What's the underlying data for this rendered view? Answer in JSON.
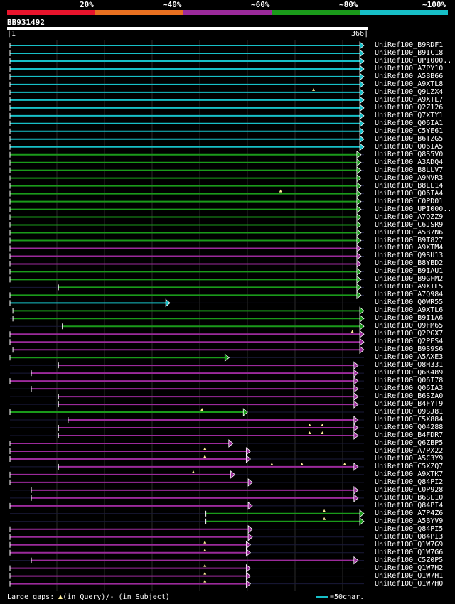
{
  "query": {
    "id": "BB931492",
    "start": "1",
    "end": "366"
  },
  "legend": {
    "colors": [
      "#e8142c",
      "#e87020",
      "#9b2a9b",
      "#1a9a1a",
      "#17bfc7"
    ],
    "labels": [
      "20%",
      "~40%",
      "~60%",
      "~80%",
      "~100%"
    ]
  },
  "footer": {
    "prefix": "Large gaps: ",
    "query_note": "(in Query)/",
    "dash": "-",
    "subject_note": " (in Subject)",
    "scale_label": "=50char."
  },
  "hits": [
    {
      "name": "UniRef100_B9RDF1",
      "color": "#17bfc7",
      "start": 1,
      "end": 366,
      "gaps": []
    },
    {
      "name": "UniRef100_B9IC18",
      "color": "#17bfc7",
      "start": 1,
      "end": 366,
      "gaps": []
    },
    {
      "name": "UniRef100_UPI000..",
      "color": "#17bfc7",
      "start": 1,
      "end": 366,
      "gaps": []
    },
    {
      "name": "UniRef100_A7PY10",
      "color": "#17bfc7",
      "start": 1,
      "end": 366,
      "gaps": []
    },
    {
      "name": "UniRef100_A5BB66",
      "color": "#17bfc7",
      "start": 1,
      "end": 366,
      "gaps": []
    },
    {
      "name": "UniRef100_A9XTL8",
      "color": "#17bfc7",
      "start": 1,
      "end": 366,
      "gaps": []
    },
    {
      "name": "UniRef100_Q9LZX4",
      "color": "#17bfc7",
      "start": 1,
      "end": 366,
      "gaps": [
        314
      ]
    },
    {
      "name": "UniRef100_A9XTL7",
      "color": "#17bfc7",
      "start": 1,
      "end": 366,
      "gaps": []
    },
    {
      "name": "UniRef100_Q2Z126",
      "color": "#17bfc7",
      "start": 1,
      "end": 366,
      "gaps": []
    },
    {
      "name": "UniRef100_Q7XTY1",
      "color": "#17bfc7",
      "start": 1,
      "end": 366,
      "gaps": []
    },
    {
      "name": "UniRef100_Q06IA1",
      "color": "#17bfc7",
      "start": 1,
      "end": 366,
      "gaps": []
    },
    {
      "name": "UniRef100_C5YE61",
      "color": "#17bfc7",
      "start": 1,
      "end": 366,
      "gaps": []
    },
    {
      "name": "UniRef100_B6TZG5",
      "color": "#17bfc7",
      "start": 1,
      "end": 366,
      "gaps": []
    },
    {
      "name": "UniRef100_Q06IA5",
      "color": "#17bfc7",
      "start": 1,
      "end": 366,
      "gaps": []
    },
    {
      "name": "UniRef100_Q8S5V0",
      "color": "#1a9a1a",
      "start": 1,
      "end": 363,
      "gaps": []
    },
    {
      "name": "UniRef100_A3ADQ4",
      "color": "#1a9a1a",
      "start": 1,
      "end": 363,
      "gaps": []
    },
    {
      "name": "UniRef100_B8LLV7",
      "color": "#1a9a1a",
      "start": 1,
      "end": 363,
      "gaps": []
    },
    {
      "name": "UniRef100_A9NVR3",
      "color": "#1a9a1a",
      "start": 1,
      "end": 363,
      "gaps": []
    },
    {
      "name": "UniRef100_B8LL14",
      "color": "#1a9a1a",
      "start": 1,
      "end": 363,
      "gaps": []
    },
    {
      "name": "UniRef100_Q06IA4",
      "color": "#1a9a1a",
      "start": 1,
      "end": 363,
      "gaps": [
        280
      ]
    },
    {
      "name": "UniRef100_C0PD01",
      "color": "#1a9a1a",
      "start": 1,
      "end": 363,
      "gaps": []
    },
    {
      "name": "UniRef100_UPI000..",
      "color": "#1a9a1a",
      "start": 1,
      "end": 363,
      "gaps": []
    },
    {
      "name": "UniRef100_A7QZZ9",
      "color": "#1a9a1a",
      "start": 1,
      "end": 363,
      "gaps": []
    },
    {
      "name": "UniRef100_C6JSR9",
      "color": "#1a9a1a",
      "start": 1,
      "end": 363,
      "gaps": []
    },
    {
      "name": "UniRef100_A5B7N6",
      "color": "#1a9a1a",
      "start": 1,
      "end": 363,
      "gaps": []
    },
    {
      "name": "UniRef100_B9T827",
      "color": "#1a9a1a",
      "start": 1,
      "end": 363,
      "gaps": []
    },
    {
      "name": "UniRef100_A9XTM4",
      "color": "#9b2a9b",
      "start": 1,
      "end": 363,
      "gaps": []
    },
    {
      "name": "UniRef100_Q9SU13",
      "color": "#9b2a9b",
      "start": 1,
      "end": 363,
      "gaps": []
    },
    {
      "name": "UniRef100_B8YBD2",
      "color": "#9b2a9b",
      "start": 1,
      "end": 363,
      "gaps": []
    },
    {
      "name": "UniRef100_B9IAU1",
      "color": "#1a9a1a",
      "start": 1,
      "end": 363,
      "gaps": []
    },
    {
      "name": "UniRef100_B9GFM2",
      "color": "#1a9a1a",
      "start": 1,
      "end": 363,
      "gaps": []
    },
    {
      "name": "UniRef100_A9XTL5",
      "color": "#1a9a1a",
      "start": 51,
      "end": 363,
      "gaps": []
    },
    {
      "name": "UniRef100_A7Q984",
      "color": "#1a9a1a",
      "start": 1,
      "end": 363,
      "gaps": []
    },
    {
      "name": "UniRef100_Q0WR55",
      "color": "#17bfc7",
      "start": 1,
      "end": 166,
      "gaps": []
    },
    {
      "name": "UniRef100_A9XTL6",
      "color": "#1a9a1a",
      "start": 4,
      "end": 366,
      "gaps": []
    },
    {
      "name": "UniRef100_B9I1A6",
      "color": "#1a9a1a",
      "start": 4,
      "end": 366,
      "gaps": []
    },
    {
      "name": "UniRef100_Q9FM65",
      "color": "#1a9a1a",
      "start": 55,
      "end": 366,
      "gaps": []
    },
    {
      "name": "UniRef100_Q2PGX7",
      "color": "#9b2a9b",
      "start": 1,
      "end": 366,
      "gaps": [
        354
      ]
    },
    {
      "name": "UniRef100_Q2PES4",
      "color": "#9b2a9b",
      "start": 1,
      "end": 366,
      "gaps": []
    },
    {
      "name": "UniRef100_B9S9S6",
      "color": "#9b2a9b",
      "start": 4,
      "end": 366,
      "gaps": []
    },
    {
      "name": "UniRef100_A5AXE3",
      "color": "#1a9a1a",
      "start": 1,
      "end": 227,
      "gaps": []
    },
    {
      "name": "UniRef100_Q8H331",
      "color": "#9b2a9b",
      "start": 51,
      "end": 360,
      "gaps": []
    },
    {
      "name": "UniRef100_Q6K489",
      "color": "#9b2a9b",
      "start": 23,
      "end": 360,
      "gaps": []
    },
    {
      "name": "UniRef100_Q06I78",
      "color": "#9b2a9b",
      "start": 1,
      "end": 360,
      "gaps": []
    },
    {
      "name": "UniRef100_Q06IA3",
      "color": "#9b2a9b",
      "start": 23,
      "end": 360,
      "gaps": []
    },
    {
      "name": "UniRef100_B6SZA0",
      "color": "#9b2a9b",
      "start": 51,
      "end": 360,
      "gaps": []
    },
    {
      "name": "UniRef100_B4FYT9",
      "color": "#9b2a9b",
      "start": 51,
      "end": 360,
      "gaps": []
    },
    {
      "name": "UniRef100_Q9SJ81",
      "color": "#1a9a1a",
      "start": 1,
      "end": 246,
      "gaps": [
        199
      ]
    },
    {
      "name": "UniRef100_C5X884",
      "color": "#9b2a9b",
      "start": 61,
      "end": 360,
      "gaps": []
    },
    {
      "name": "UniRef100_Q04288",
      "color": "#9b2a9b",
      "start": 51,
      "end": 360,
      "gaps": [
        310,
        323
      ]
    },
    {
      "name": "UniRef100_B4FDR7",
      "color": "#9b2a9b",
      "start": 51,
      "end": 360,
      "gaps": [
        310,
        323
      ]
    },
    {
      "name": "UniRef100_Q6ZBP5",
      "color": "#9b2a9b",
      "start": 1,
      "end": 231,
      "gaps": []
    },
    {
      "name": "UniRef100_A7PX22",
      "color": "#9b2a9b",
      "start": 1,
      "end": 249,
      "gaps": [
        202
      ]
    },
    {
      "name": "UniRef100_A5C3Y9",
      "color": "#9b2a9b",
      "start": 1,
      "end": 249,
      "gaps": [
        202
      ]
    },
    {
      "name": "UniRef100_C5XZQ7",
      "color": "#9b2a9b",
      "start": 51,
      "end": 360,
      "gaps": [
        271,
        302,
        346
      ]
    },
    {
      "name": "UniRef100_A9XTK7",
      "color": "#9b2a9b",
      "start": 1,
      "end": 233,
      "gaps": [
        190
      ]
    },
    {
      "name": "UniRef100_Q84PI2",
      "color": "#9b2a9b",
      "start": 1,
      "end": 251,
      "gaps": []
    },
    {
      "name": "UniRef100_C0P928",
      "color": "#9b2a9b",
      "start": 23,
      "end": 360,
      "gaps": []
    },
    {
      "name": "UniRef100_B6SL10",
      "color": "#9b2a9b",
      "start": 23,
      "end": 360,
      "gaps": []
    },
    {
      "name": "UniRef100_Q84PI4",
      "color": "#9b2a9b",
      "start": 1,
      "end": 251,
      "gaps": []
    },
    {
      "name": "UniRef100_A7P4Z6",
      "color": "#1a9a1a",
      "start": 203,
      "end": 366,
      "gaps": [
        325
      ]
    },
    {
      "name": "UniRef100_A5BYV9",
      "color": "#1a9a1a",
      "start": 203,
      "end": 366,
      "gaps": [
        325
      ]
    },
    {
      "name": "UniRef100_Q84PI5",
      "color": "#9b2a9b",
      "start": 1,
      "end": 251,
      "gaps": []
    },
    {
      "name": "UniRef100_Q84PI3",
      "color": "#9b2a9b",
      "start": 1,
      "end": 251,
      "gaps": []
    },
    {
      "name": "UniRef100_Q1W7G9",
      "color": "#9b2a9b",
      "start": 1,
      "end": 249,
      "gaps": [
        202
      ]
    },
    {
      "name": "UniRef100_Q1W7G6",
      "color": "#9b2a9b",
      "start": 1,
      "end": 249,
      "gaps": [
        202
      ]
    },
    {
      "name": "UniRef100_C5Z0P5",
      "color": "#9b2a9b",
      "start": 23,
      "end": 360,
      "gaps": []
    },
    {
      "name": "UniRef100_Q1W7H2",
      "color": "#9b2a9b",
      "start": 1,
      "end": 249,
      "gaps": [
        202
      ]
    },
    {
      "name": "UniRef100_Q1W7H1",
      "color": "#9b2a9b",
      "start": 1,
      "end": 249,
      "gaps": [
        202
      ]
    },
    {
      "name": "UniRef100_Q1W7H0",
      "color": "#9b2a9b",
      "start": 1,
      "end": 249,
      "gaps": [
        202
      ]
    }
  ]
}
